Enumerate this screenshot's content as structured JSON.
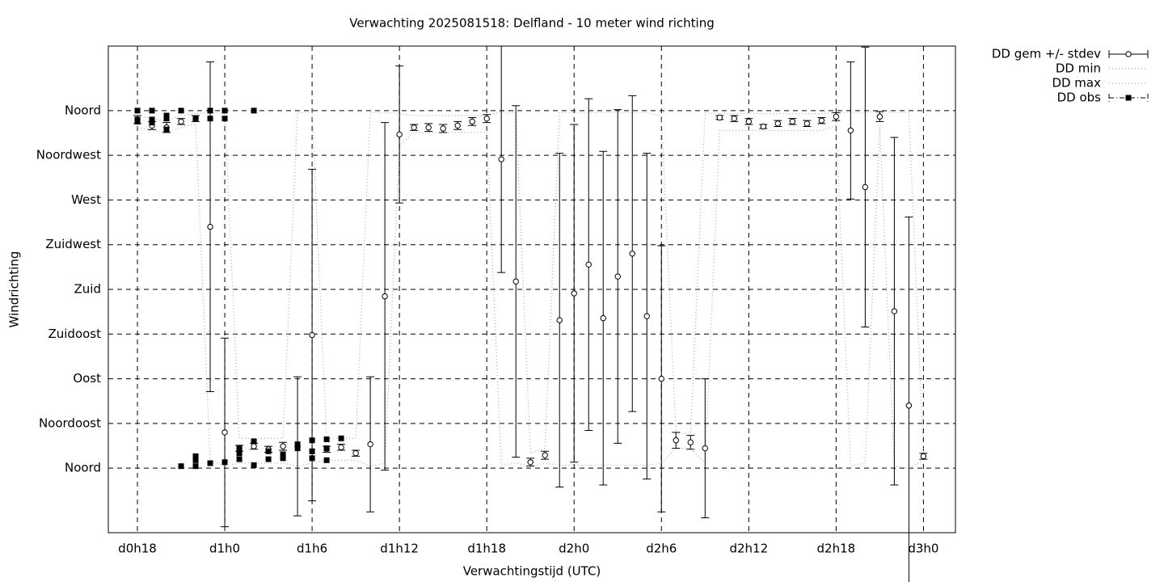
{
  "chart_data": {
    "type": "errorbar-line",
    "title": "Verwachting 2025081518: Delfland - 10 meter wind richting",
    "xlabel": "Verwachtingstijd (UTC)",
    "ylabel": "Windrichting",
    "grid": true,
    "legend": "upper right outside",
    "xlim": [
      16,
      74.2
    ],
    "ylim": [
      -65,
      425
    ],
    "xticks": [
      {
        "value": 18,
        "label": "d0h18"
      },
      {
        "value": 24,
        "label": "d1h0"
      },
      {
        "value": 30,
        "label": "d1h6"
      },
      {
        "value": 36,
        "label": "d1h12"
      },
      {
        "value": 42,
        "label": "d1h18"
      },
      {
        "value": 48,
        "label": "d2h0"
      },
      {
        "value": 54,
        "label": "d2h6"
      },
      {
        "value": 60,
        "label": "d2h12"
      },
      {
        "value": 66,
        "label": "d2h18"
      },
      {
        "value": 72,
        "label": "d3h0"
      }
    ],
    "yticks": [
      {
        "value": 0,
        "label": "Noord"
      },
      {
        "value": 45,
        "label": "Noordoost"
      },
      {
        "value": 90,
        "label": "Oost"
      },
      {
        "value": 135,
        "label": "Zuidoost"
      },
      {
        "value": 180,
        "label": "Zuid"
      },
      {
        "value": 225,
        "label": "Zuidwest"
      },
      {
        "value": 270,
        "label": "West"
      },
      {
        "value": 315,
        "label": "Noordwest"
      },
      {
        "value": 360,
        "label": "Noord"
      }
    ],
    "x": [
      18,
      19,
      20,
      21,
      22,
      23,
      24,
      25,
      26,
      27,
      28,
      29,
      30,
      31,
      32,
      33,
      34,
      35,
      36,
      37,
      38,
      39,
      40,
      41,
      42,
      43,
      44,
      45,
      46,
      47,
      48,
      49,
      50,
      51,
      52,
      53,
      54,
      55,
      56,
      57,
      58,
      59,
      60,
      61,
      62,
      63,
      64,
      65,
      66,
      67,
      68,
      69,
      70,
      71,
      72
    ],
    "series": [
      {
        "name": "DD gem +/- stdev",
        "color": "#000000",
        "values": [
          351,
          345,
          343,
          349,
          352,
          243,
          36,
          20,
          22,
          19,
          22,
          22,
          134,
          19,
          21,
          15,
          24,
          173,
          336,
          343,
          343,
          342,
          345,
          349,
          352,
          311,
          188,
          6,
          13,
          149,
          176,
          205,
          151,
          193,
          216,
          153,
          90,
          28,
          26,
          20,
          353,
          352,
          349,
          344,
          347,
          349,
          347,
          350,
          354,
          340,
          283,
          354,
          158,
          63,
          12
        ],
        "errors": [
          4,
          4,
          5,
          3,
          3,
          166,
          95,
          3,
          3,
          3,
          4,
          70,
          167,
          3,
          3,
          3,
          68,
          175,
          69,
          3,
          4,
          4,
          4,
          4,
          4,
          114,
          177,
          4,
          4,
          168,
          170,
          167,
          168,
          168,
          159,
          164,
          134,
          8,
          7,
          70,
          2,
          3,
          3,
          2,
          3,
          3,
          3,
          3,
          4,
          69,
          141,
          5,
          175,
          190,
          3
        ]
      },
      {
        "name": "DD min",
        "color": "#aaaaaa",
        "values": [
          343,
          340,
          338,
          343,
          347,
          8,
          2,
          5,
          5,
          5,
          5,
          2,
          5,
          8,
          8,
          8,
          2,
          5,
          325,
          338,
          338,
          338,
          338,
          338,
          338,
          3,
          5,
          2,
          5,
          3,
          3,
          3,
          3,
          3,
          3,
          3,
          5,
          20,
          20,
          5,
          340,
          340,
          340,
          340,
          340,
          340,
          340,
          340,
          345,
          2,
          5,
          345,
          2,
          0,
          8
        ]
      },
      {
        "name": "DD max",
        "color": "#aaaaaa",
        "values": [
          355,
          352,
          350,
          355,
          357,
          358,
          358,
          30,
          30,
          30,
          30,
          358,
          358,
          30,
          30,
          30,
          358,
          358,
          357,
          355,
          355,
          355,
          355,
          355,
          355,
          359,
          358,
          15,
          20,
          358,
          358,
          358,
          358,
          358,
          358,
          358,
          355,
          35,
          35,
          358,
          357,
          357,
          357,
          357,
          357,
          357,
          357,
          357,
          358,
          358,
          358,
          360,
          358,
          358,
          15
        ]
      },
      {
        "name": "DD obs",
        "color": "#000000",
        "x": [
          18,
          18,
          18,
          19,
          19,
          19,
          20,
          20,
          20,
          21,
          21,
          22,
          22,
          22,
          22,
          23,
          23,
          23,
          24,
          24,
          24,
          25,
          25,
          25,
          26,
          26,
          26,
          27,
          27,
          28,
          28,
          29,
          29,
          30,
          30,
          30,
          31,
          31,
          31,
          32
        ],
        "values": [
          360,
          351,
          349,
          360,
          351,
          348,
          355,
          352,
          341,
          360,
          2,
          352,
          12,
          8,
          2,
          360,
          352,
          5,
          360,
          352,
          6,
          20,
          15,
          9,
          360,
          27,
          3,
          17,
          9,
          14,
          10,
          24,
          20,
          28,
          17,
          10,
          29,
          20,
          8,
          30
        ]
      }
    ]
  }
}
